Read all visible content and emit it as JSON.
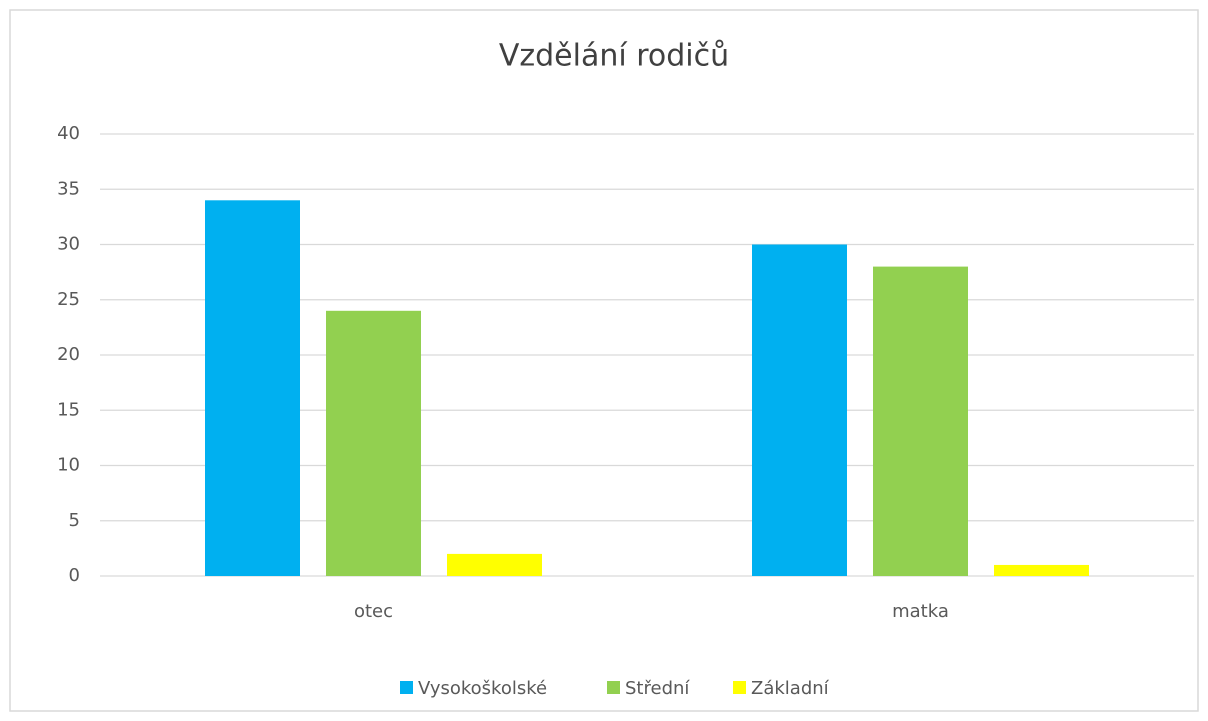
{
  "chart_data": {
    "type": "bar",
    "title": "Vzdělání rodičů",
    "categories": [
      "otec",
      "matka"
    ],
    "series": [
      {
        "name": "Vysokoškolské",
        "color": "#00b0f0",
        "values": [
          34,
          30
        ]
      },
      {
        "name": "Střední",
        "color": "#92d050",
        "values": [
          24,
          28
        ]
      },
      {
        "name": "Základní",
        "color": "#ffff00",
        "values": [
          2,
          1
        ]
      }
    ],
    "ylim": [
      0,
      40
    ],
    "yticks": [
      0,
      5,
      10,
      15,
      20,
      25,
      30,
      35,
      40
    ],
    "grid": true,
    "legend": "bottom"
  }
}
